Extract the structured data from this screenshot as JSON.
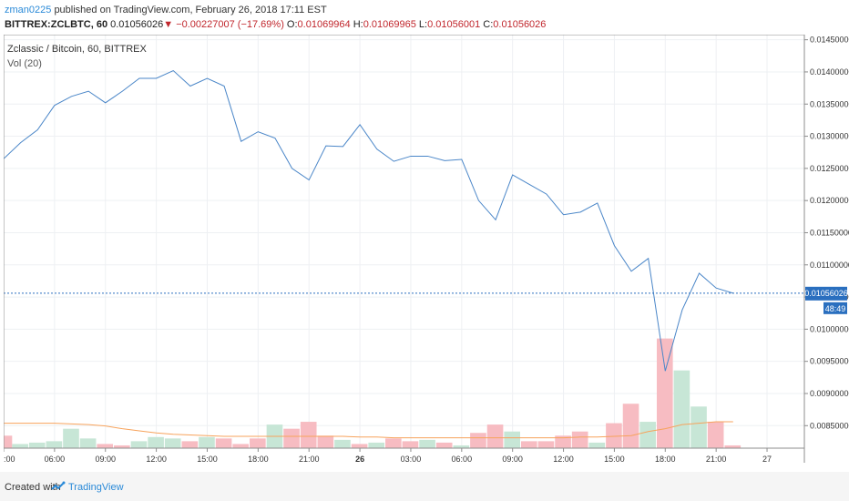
{
  "header": {
    "username": "zman0225",
    "published_text": "published on TradingView.com, February 26, 2018 17:11 EST",
    "symbol": "BITTREX:ZCLBTC, 60",
    "last": "0.01056026",
    "change_arrow": "▼",
    "change": "−0.00227007 (−17.69%)",
    "o_label": "O:",
    "o_value": "0.01069964",
    "h_label": "H:",
    "h_value": "0.01069965",
    "l_label": "L:",
    "l_value": "0.01056001",
    "c_label": "C:",
    "c_value": "0.01056026"
  },
  "legend": {
    "title": "Zclassic / Bitcoin, 60, BITTREX",
    "volume": "Vol (20)"
  },
  "price_badge": "0.01056026",
  "countdown_badge": "48:49",
  "footer": {
    "created": "Created with",
    "brand": "TradingView"
  },
  "colors": {
    "price_line": "#4a86c8",
    "up_volume": "#c7e6d6",
    "down_volume": "#f7bcc2",
    "vol_ma": "#f7a35c",
    "badge": "#2a6fbf"
  },
  "chart_data": {
    "type": "line",
    "y_ticks": [
      "0.01450000",
      "0.01400000",
      "0.01350000",
      "0.01300000",
      "0.01250000",
      "0.01200000",
      "0.01150000",
      "0.01100000",
      "0.01050000",
      "0.01000000",
      "0.00950000",
      "0.00900000",
      "0.00850000"
    ],
    "ylim": [
      0.00815,
      0.01458
    ],
    "x_tick_labels": [
      ":00",
      "06:00",
      "09:00",
      "12:00",
      "15:00",
      "18:00",
      "21:00",
      "26",
      "03:00",
      "06:00",
      "09:00",
      "12:00",
      "15:00",
      "18:00",
      "21:00",
      "27"
    ],
    "x_tick_pos": [
      0,
      3,
      6,
      9,
      12,
      15,
      18,
      21,
      24,
      27,
      30,
      33,
      36,
      39,
      42,
      45
    ],
    "xlim": [
      0,
      47.2
    ],
    "price": [
      0.01265,
      0.0129,
      0.0131,
      0.01348,
      0.01362,
      0.0137,
      0.01352,
      0.0137,
      0.0139,
      0.0139,
      0.01402,
      0.01378,
      0.0139,
      0.01378,
      0.01292,
      0.01307,
      0.01297,
      0.0125,
      0.01232,
      0.01285,
      0.01284,
      0.01318,
      0.0128,
      0.01261,
      0.01269,
      0.01269,
      0.01262,
      0.01264,
      0.012,
      0.0117,
      0.0124,
      0.01225,
      0.0121,
      0.01178,
      0.01182,
      0.01196,
      0.0113,
      0.0109,
      0.0111,
      0.00935,
      0.0103,
      0.01087,
      0.01064,
      0.01056
    ],
    "last_price": 0.01056026,
    "volume": [
      9,
      3,
      4,
      5,
      14,
      7,
      3,
      2,
      5,
      8,
      7,
      5,
      8,
      7,
      3,
      7,
      17,
      14,
      19,
      9,
      6,
      3,
      4,
      7,
      5,
      6,
      4,
      2,
      11,
      17,
      12,
      5,
      5,
      9,
      12,
      4,
      18,
      32,
      19,
      79,
      56,
      30,
      19,
      2
    ],
    "volume_up": [
      false,
      true,
      true,
      true,
      true,
      true,
      false,
      false,
      true,
      true,
      true,
      false,
      true,
      false,
      false,
      false,
      true,
      false,
      false,
      false,
      true,
      false,
      true,
      false,
      false,
      true,
      false,
      true,
      false,
      false,
      true,
      false,
      false,
      false,
      false,
      true,
      false,
      false,
      true,
      false,
      true,
      true,
      false,
      false
    ],
    "vol_max": 105,
    "vol_ma": [
      18,
      18,
      18,
      18,
      17.5,
      17,
      16,
      14,
      12.5,
      11,
      10,
      9.5,
      9,
      8.5,
      8.5,
      8.5,
      8.5,
      8.5,
      8.5,
      8.5,
      8.5,
      8,
      8,
      7.5,
      7.5,
      7.5,
      7.5,
      7.5,
      7.5,
      7.5,
      7.5,
      7.5,
      7.5,
      7.5,
      8,
      8,
      8.5,
      9,
      12,
      14,
      17,
      18,
      19,
      19
    ]
  }
}
